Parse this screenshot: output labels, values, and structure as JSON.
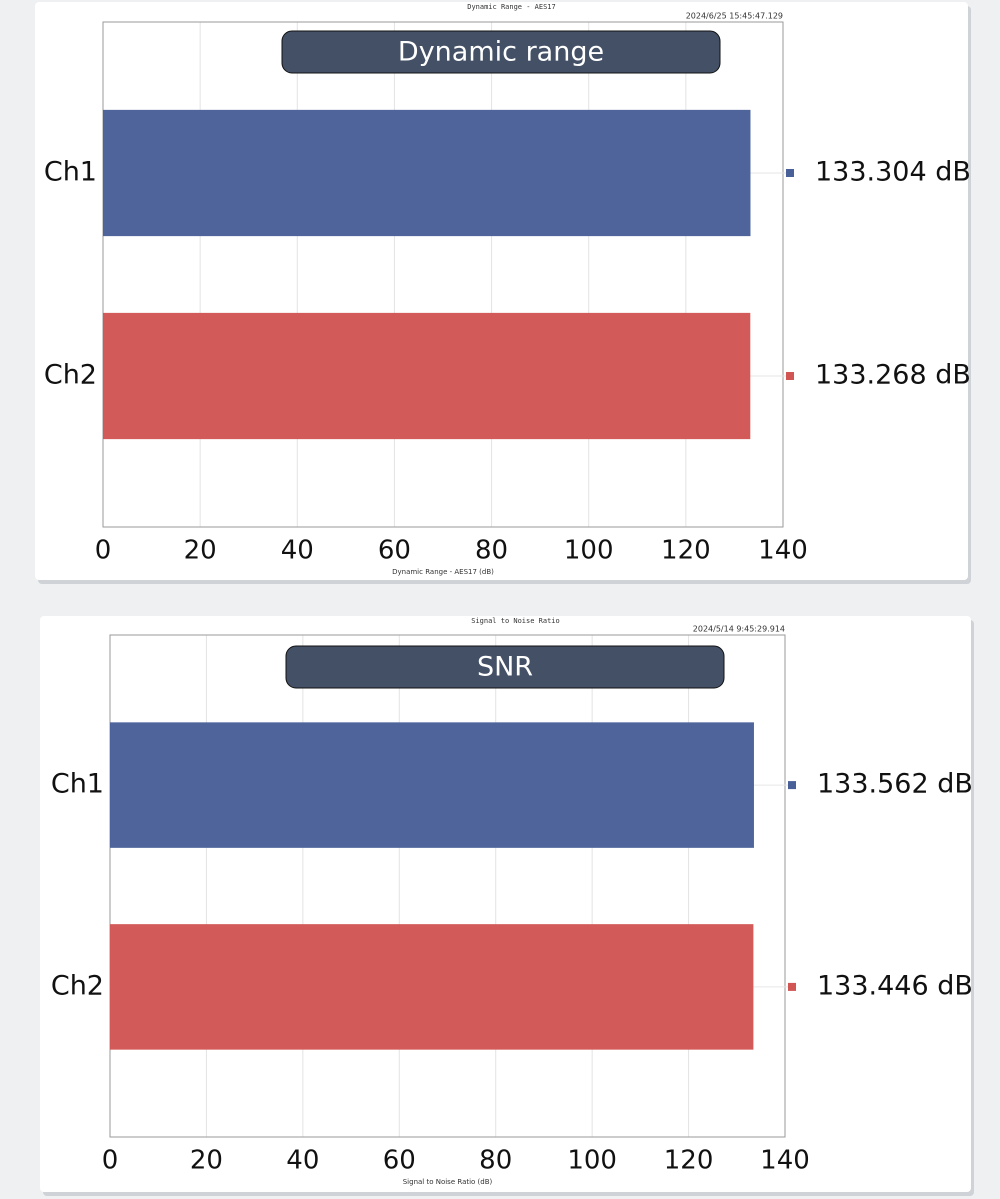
{
  "chart_data": [
    {
      "type": "bar",
      "orientation": "horizontal",
      "title": "Dynamic Range - AES17",
      "timestamp": "2024/6/25 15:45:47.129",
      "banner": "Dynamic range",
      "categories": [
        "Ch1",
        "Ch2"
      ],
      "values": [
        133.304,
        133.268
      ],
      "value_labels": [
        "133.304 dB",
        "133.268 dB"
      ],
      "colors": [
        "#485f98",
        "#d15553"
      ],
      "xlabel": "Dynamic Range - AES17 (dB)",
      "xlim": [
        0,
        140
      ],
      "xticks": [
        0,
        20,
        40,
        60,
        80,
        100,
        120,
        140
      ],
      "grid": true
    },
    {
      "type": "bar",
      "orientation": "horizontal",
      "title": "Signal to Noise Ratio",
      "timestamp": "2024/5/14 9:45:29.914",
      "banner": "SNR",
      "categories": [
        "Ch1",
        "Ch2"
      ],
      "values": [
        133.562,
        133.446
      ],
      "value_labels": [
        "133.562 dB",
        "133.446 dB"
      ],
      "colors": [
        "#485f98",
        "#d15553"
      ],
      "xlabel": "Signal to Noise Ratio (dB)",
      "xlim": [
        0,
        140
      ],
      "xticks": [
        0,
        20,
        40,
        60,
        80,
        100,
        120,
        140
      ],
      "grid": true
    }
  ]
}
